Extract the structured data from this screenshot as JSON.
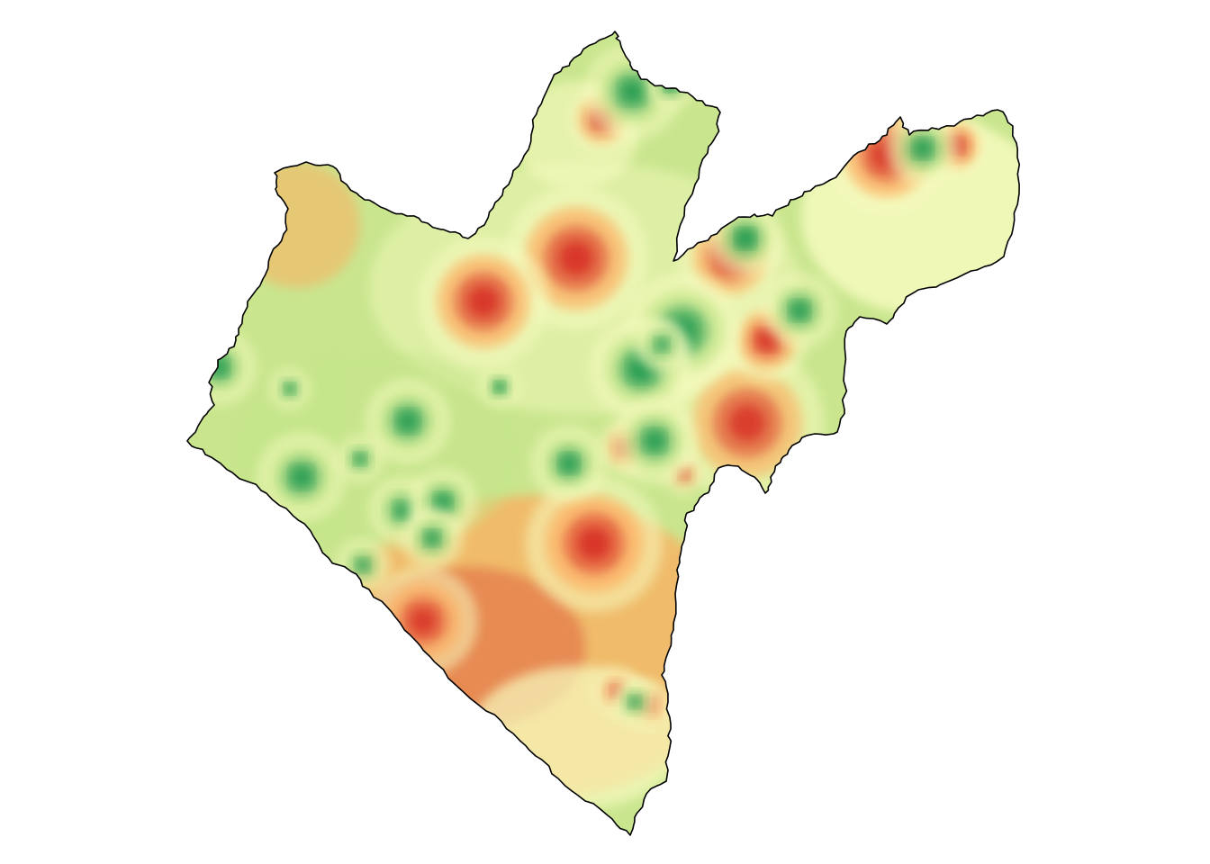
{
  "map": {
    "type": "interpolated-surface",
    "color_scale": {
      "low": "#d73027",
      "low_mid": "#fdae61",
      "mid": "#f7fbc0",
      "high_mid": "#c4e58a",
      "high": "#1a9850"
    },
    "background_color": "#c9e68f",
    "boundary_color": "#000000",
    "hotspots": [
      {
        "kind": "low",
        "strength": 1.0
      },
      {
        "kind": "low",
        "strength": 1.0
      },
      {
        "kind": "low",
        "strength": 0.9
      },
      {
        "kind": "low",
        "strength": 1.0
      },
      {
        "kind": "low",
        "strength": 1.0
      },
      {
        "kind": "low",
        "strength": 0.9
      },
      {
        "kind": "low",
        "strength": 1.0
      },
      {
        "kind": "low",
        "strength": 0.8
      },
      {
        "kind": "low",
        "strength": 1.0
      },
      {
        "kind": "low",
        "strength": 0.9
      },
      {
        "kind": "low",
        "strength": 0.6
      },
      {
        "kind": "low",
        "strength": 0.8
      },
      {
        "kind": "low",
        "strength": 0.8
      },
      {
        "kind": "low",
        "strength": 0.5
      },
      {
        "kind": "high",
        "strength": 1.0
      },
      {
        "kind": "high",
        "strength": 1.0
      },
      {
        "kind": "high",
        "strength": 0.9
      },
      {
        "kind": "high",
        "strength": 0.9
      },
      {
        "kind": "high",
        "strength": 1.0
      },
      {
        "kind": "high",
        "strength": 0.9
      },
      {
        "kind": "high",
        "strength": 0.9
      },
      {
        "kind": "high",
        "strength": 0.9
      },
      {
        "kind": "high",
        "strength": 0.9
      },
      {
        "kind": "high",
        "strength": 0.9
      },
      {
        "kind": "high",
        "strength": 0.8
      },
      {
        "kind": "high",
        "strength": 0.9
      },
      {
        "kind": "high",
        "strength": 0.8
      },
      {
        "kind": "high",
        "strength": 0.9
      },
      {
        "kind": "high",
        "strength": 0.8
      },
      {
        "kind": "high",
        "strength": 0.8
      },
      {
        "kind": "high",
        "strength": 0.7
      },
      {
        "kind": "high",
        "strength": 0.7
      },
      {
        "kind": "high",
        "strength": 0.7
      },
      {
        "kind": "high",
        "strength": 0.9
      },
      {
        "kind": "high",
        "strength": 0.9
      }
    ]
  }
}
